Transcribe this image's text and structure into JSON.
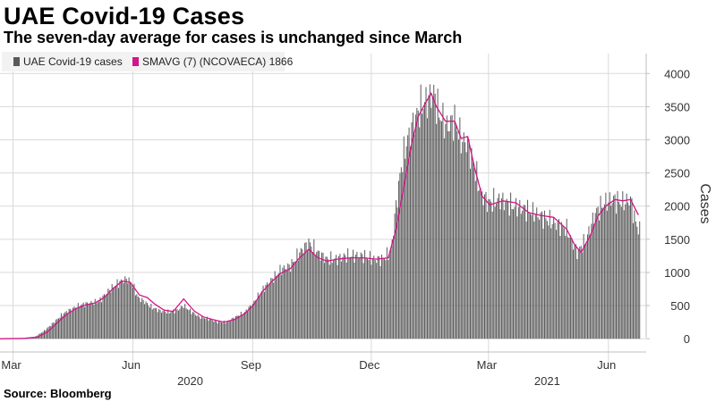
{
  "title": "UAE Covid-19 Cases",
  "subtitle": "The seven-day average for cases is unchanged since March",
  "source": "Source: Bloomberg",
  "colors": {
    "bar": "#595959",
    "avg": "#d4148a",
    "grid": "#d9d9d9",
    "legend_bg": "#f2f2f2",
    "axis_text": "#333333"
  },
  "chart_data": {
    "type": "bar",
    "y_axis_side": "right",
    "ylabel": "Cases",
    "ylim": [
      -200,
      4300
    ],
    "yticks": [
      0,
      500,
      1000,
      1500,
      2000,
      2500,
      3000,
      3500,
      4000
    ],
    "grid": true,
    "legend_placement": "top-left",
    "x_range": [
      "2020-02-20",
      "2021-06-30"
    ],
    "month_labels": [
      {
        "label": "Mar",
        "date": "2020-03-01"
      },
      {
        "label": "Jun",
        "date": "2020-06-01"
      },
      {
        "label": "Sep",
        "date": "2020-09-01"
      },
      {
        "label": "Dec",
        "date": "2020-12-01"
      },
      {
        "label": "Mar",
        "date": "2021-03-01"
      },
      {
        "label": "Jun",
        "date": "2021-06-01"
      }
    ],
    "year_labels": [
      {
        "label": "2020",
        "date": "2020-07-15"
      },
      {
        "label": "2021",
        "date": "2021-04-15"
      }
    ],
    "series": [
      {
        "name": "UAE Covid-19 cases",
        "kind": "bar",
        "points": [
          [
            "2020-02-20",
            0
          ],
          [
            "2020-03-01",
            5
          ],
          [
            "2020-03-10",
            15
          ],
          [
            "2020-03-18",
            30
          ],
          [
            "2020-03-25",
            120
          ],
          [
            "2020-04-01",
            240
          ],
          [
            "2020-04-08",
            370
          ],
          [
            "2020-04-15",
            450
          ],
          [
            "2020-04-22",
            510
          ],
          [
            "2020-04-29",
            540
          ],
          [
            "2020-05-06",
            560
          ],
          [
            "2020-05-12",
            700
          ],
          [
            "2020-05-18",
            800
          ],
          [
            "2020-05-24",
            880
          ],
          [
            "2020-05-28",
            900
          ],
          [
            "2020-06-01",
            800
          ],
          [
            "2020-06-05",
            620
          ],
          [
            "2020-06-10",
            560
          ],
          [
            "2020-06-15",
            480
          ],
          [
            "2020-06-22",
            420
          ],
          [
            "2020-06-29",
            400
          ],
          [
            "2020-07-05",
            430
          ],
          [
            "2020-07-10",
            500
          ],
          [
            "2020-07-15",
            420
          ],
          [
            "2020-07-22",
            330
          ],
          [
            "2020-07-29",
            300
          ],
          [
            "2020-08-05",
            250
          ],
          [
            "2020-08-12",
            250
          ],
          [
            "2020-08-19",
            330
          ],
          [
            "2020-08-26",
            400
          ],
          [
            "2020-09-02",
            550
          ],
          [
            "2020-09-09",
            750
          ],
          [
            "2020-09-16",
            900
          ],
          [
            "2020-09-23",
            1050
          ],
          [
            "2020-09-30",
            1100
          ],
          [
            "2020-10-07",
            1300
          ],
          [
            "2020-10-14",
            1450
          ],
          [
            "2020-10-21",
            1300
          ],
          [
            "2020-10-28",
            1200
          ],
          [
            "2020-11-04",
            1200
          ],
          [
            "2020-11-11",
            1250
          ],
          [
            "2020-11-18",
            1250
          ],
          [
            "2020-11-25",
            1250
          ],
          [
            "2020-12-02",
            1200
          ],
          [
            "2020-12-09",
            1200
          ],
          [
            "2020-12-16",
            1300
          ],
          [
            "2020-12-20",
            2000
          ],
          [
            "2020-12-24",
            2600
          ],
          [
            "2020-12-28",
            2950
          ],
          [
            "2021-01-03",
            3300
          ],
          [
            "2021-01-08",
            3500
          ],
          [
            "2021-01-13",
            3600
          ],
          [
            "2021-01-18",
            3700
          ],
          [
            "2021-01-22",
            3400
          ],
          [
            "2021-01-28",
            3200
          ],
          [
            "2021-02-03",
            3300
          ],
          [
            "2021-02-08",
            3000
          ],
          [
            "2021-02-13",
            2950
          ],
          [
            "2021-02-18",
            2600
          ],
          [
            "2021-02-23",
            2200
          ],
          [
            "2021-03-01",
            2050
          ],
          [
            "2021-03-10",
            2100
          ],
          [
            "2021-03-20",
            2000
          ],
          [
            "2021-03-30",
            1950
          ],
          [
            "2021-04-10",
            1850
          ],
          [
            "2021-04-20",
            1750
          ],
          [
            "2021-04-30",
            1650
          ],
          [
            "2021-05-08",
            1300
          ],
          [
            "2021-05-15",
            1500
          ],
          [
            "2021-05-22",
            1900
          ],
          [
            "2021-05-29",
            2050
          ],
          [
            "2021-06-05",
            2100
          ],
          [
            "2021-06-12",
            2050
          ],
          [
            "2021-06-18",
            2100
          ],
          [
            "2021-06-22",
            1750
          ],
          [
            "2021-06-25",
            1620
          ]
        ]
      },
      {
        "name": "SMAVG (7) (NCOVAECA) 1866",
        "kind": "line",
        "points": [
          [
            "2020-02-20",
            0
          ],
          [
            "2020-03-10",
            5
          ],
          [
            "2020-03-20",
            25
          ],
          [
            "2020-03-28",
            110
          ],
          [
            "2020-04-05",
            260
          ],
          [
            "2020-04-12",
            380
          ],
          [
            "2020-04-19",
            460
          ],
          [
            "2020-04-26",
            510
          ],
          [
            "2020-05-03",
            540
          ],
          [
            "2020-05-10",
            620
          ],
          [
            "2020-05-17",
            760
          ],
          [
            "2020-05-24",
            870
          ],
          [
            "2020-05-30",
            850
          ],
          [
            "2020-06-06",
            660
          ],
          [
            "2020-06-12",
            620
          ],
          [
            "2020-06-18",
            520
          ],
          [
            "2020-06-25",
            430
          ],
          [
            "2020-07-02",
            410
          ],
          [
            "2020-07-10",
            600
          ],
          [
            "2020-07-18",
            420
          ],
          [
            "2020-07-25",
            330
          ],
          [
            "2020-08-01",
            290
          ],
          [
            "2020-08-10",
            250
          ],
          [
            "2020-08-18",
            290
          ],
          [
            "2020-08-26",
            380
          ],
          [
            "2020-09-02",
            520
          ],
          [
            "2020-09-08",
            700
          ],
          [
            "2020-09-15",
            850
          ],
          [
            "2020-09-22",
            980
          ],
          [
            "2020-09-30",
            1060
          ],
          [
            "2020-10-07",
            1220
          ],
          [
            "2020-10-14",
            1350
          ],
          [
            "2020-10-21",
            1220
          ],
          [
            "2020-10-28",
            1170
          ],
          [
            "2020-11-05",
            1200
          ],
          [
            "2020-11-15",
            1220
          ],
          [
            "2020-11-25",
            1220
          ],
          [
            "2020-12-05",
            1200
          ],
          [
            "2020-12-14",
            1220
          ],
          [
            "2020-12-20",
            1650
          ],
          [
            "2020-12-26",
            2300
          ],
          [
            "2021-01-01",
            2950
          ],
          [
            "2021-01-06",
            3350
          ],
          [
            "2021-01-12",
            3570
          ],
          [
            "2021-01-16",
            3700
          ],
          [
            "2021-01-20",
            3500
          ],
          [
            "2021-01-27",
            3280
          ],
          [
            "2021-02-03",
            3280
          ],
          [
            "2021-02-08",
            3020
          ],
          [
            "2021-02-13",
            3050
          ],
          [
            "2021-02-18",
            2600
          ],
          [
            "2021-02-24",
            2150
          ],
          [
            "2021-03-02",
            2020
          ],
          [
            "2021-03-12",
            2080
          ],
          [
            "2021-03-22",
            2050
          ],
          [
            "2021-04-01",
            1900
          ],
          [
            "2021-04-10",
            1860
          ],
          [
            "2021-04-20",
            1830
          ],
          [
            "2021-04-30",
            1650
          ],
          [
            "2021-05-06",
            1420
          ],
          [
            "2021-05-11",
            1300
          ],
          [
            "2021-05-18",
            1550
          ],
          [
            "2021-05-24",
            1850
          ],
          [
            "2021-05-30",
            2000
          ],
          [
            "2021-06-06",
            2100
          ],
          [
            "2021-06-12",
            2080
          ],
          [
            "2021-06-18",
            2100
          ],
          [
            "2021-06-24",
            1866
          ]
        ]
      }
    ]
  }
}
